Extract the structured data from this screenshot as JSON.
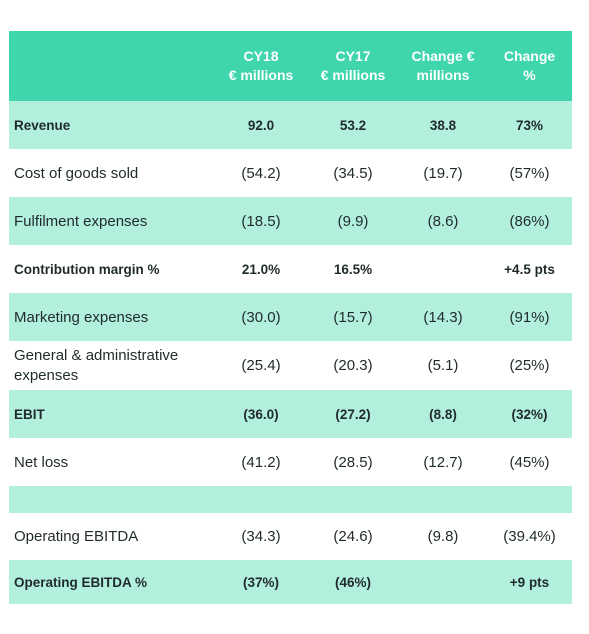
{
  "table": {
    "columns": [
      "",
      "CY18\n€ millions",
      "CY17\n€ millions",
      "Change €\nmillions",
      "Change\n%"
    ],
    "header": {
      "c1_l1": "CY18",
      "c1_l2": "€ millions",
      "c2_l1": "CY17",
      "c2_l2": "€ millions",
      "c3_l1": "Change €",
      "c3_l2": "millions",
      "c4_l1": "Change",
      "c4_l2": "%"
    },
    "rows": [
      {
        "label": "Revenue",
        "cy18": "92.0",
        "cy17": "53.2",
        "chg_eur": "38.8",
        "chg_pct": "73%",
        "bold": true
      },
      {
        "label": "Cost of goods sold",
        "cy18": "(54.2)",
        "cy17": "(34.5)",
        "chg_eur": "(19.7)",
        "chg_pct": "(57%)",
        "bold": false
      },
      {
        "label": "Fulfilment expenses",
        "cy18": "(18.5)",
        "cy17": "(9.9)",
        "chg_eur": "(8.6)",
        "chg_pct": "(86%)",
        "bold": false
      },
      {
        "label": "Contribution margin %",
        "cy18": "21.0%",
        "cy17": "16.5%",
        "chg_eur": "",
        "chg_pct": "+4.5 pts",
        "bold": true
      },
      {
        "label": "Marketing expenses",
        "cy18": "(30.0)",
        "cy17": "(15.7)",
        "chg_eur": "(14.3)",
        "chg_pct": "(91%)",
        "bold": false
      },
      {
        "label": "General & administrative expenses",
        "cy18": "(25.4)",
        "cy17": "(20.3)",
        "chg_eur": "(5.1)",
        "chg_pct": "(25%)",
        "bold": false
      },
      {
        "label": "EBIT",
        "cy18": "(36.0)",
        "cy17": "(27.2)",
        "chg_eur": "(8.8)",
        "chg_pct": "(32%)",
        "bold": true
      },
      {
        "label": "Net loss",
        "cy18": "(41.2)",
        "cy17": "(28.5)",
        "chg_eur": "(12.7)",
        "chg_pct": "(45%)",
        "bold": false
      },
      {
        "label": "",
        "cy18": "",
        "cy17": "",
        "chg_eur": "",
        "chg_pct": "",
        "bold": false
      },
      {
        "label": "Operating EBITDA",
        "cy18": "(34.3)",
        "cy17": "(24.6)",
        "chg_eur": "(9.8)",
        "chg_pct": "(39.4%)",
        "bold": false
      },
      {
        "label": "Operating EBITDA %",
        "cy18": "(37%)",
        "cy17": "(46%)",
        "chg_eur": "",
        "chg_pct": "+9 pts",
        "bold": true
      }
    ]
  },
  "colors": {
    "header_bg": "#3fd6ad",
    "band_bg": "#b3efdd",
    "text": "#1f2b2a",
    "header_text": "#ffffff"
  }
}
